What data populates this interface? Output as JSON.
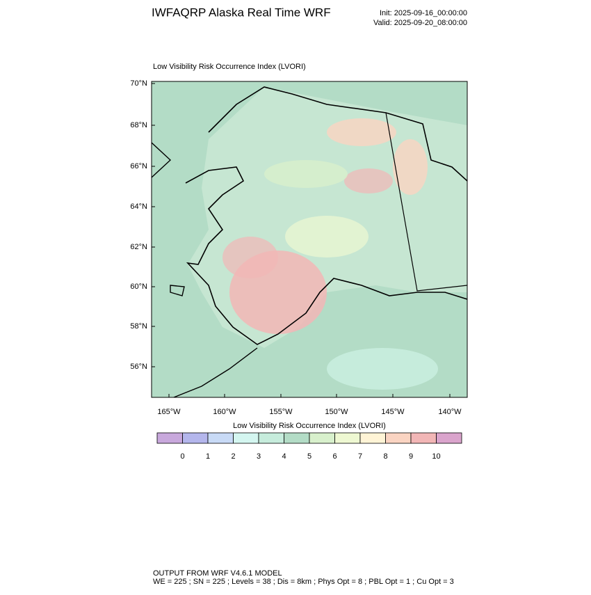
{
  "header": {
    "title": "IWFAQRP Alaska Real Time WRF",
    "init": "Init: 2025-09-16_00:00:00",
    "valid": "Valid: 2025-09-20_08:00:00"
  },
  "map": {
    "title": "Low Visibility Risk Occurrence Index   (LVORI)",
    "lat_labels": [
      "70°N",
      "68°N",
      "66°N",
      "64°N",
      "62°N",
      "60°N",
      "58°N",
      "56°N"
    ],
    "lon_labels": [
      "165°W",
      "160°W",
      "155°W",
      "150°W",
      "145°W",
      "140°W"
    ]
  },
  "colorbar": {
    "title": "Low Visibility Risk Occurrence Index  (LVORI)",
    "colors": [
      "#c8a8dc",
      "#b4b6ec",
      "#c8daf6",
      "#d4f6f0",
      "#c6ecdc",
      "#b3dcc6",
      "#d8f0cc",
      "#eef8d2",
      "#fff4d6",
      "#fad4c2",
      "#f2b6b6",
      "#daa4cc"
    ],
    "labels": [
      0,
      1,
      2,
      3,
      4,
      5,
      6,
      7,
      8,
      9,
      10
    ]
  },
  "footer": {
    "lines": [
      "OUTPUT FROM WRF V4.6.1 MODEL",
      "WE = 225 ; SN = 225 ; Levels = 38 ; Dis = 8km ; Phys Opt = 8 ; PBL Opt = 1 ; Cu Opt = 3"
    ]
  }
}
